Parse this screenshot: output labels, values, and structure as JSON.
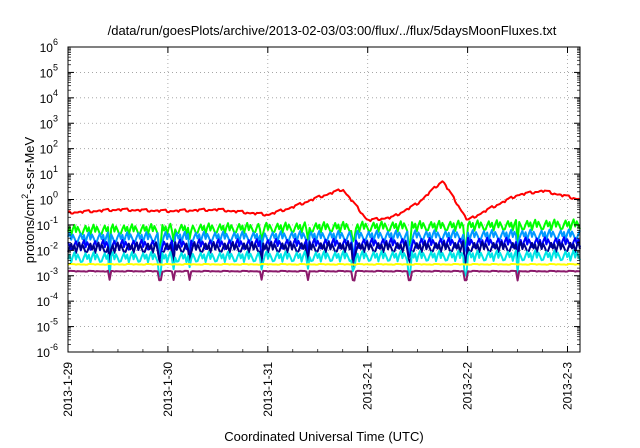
{
  "chart_data": {
    "type": "line",
    "title": "/data/run/goesPlots/archive/2013-02-03/03:00/flux/../flux/5daysMoonFluxes.txt",
    "xlabel": "Coordinated Universal Time (UTC)",
    "ylabel": "protons/cm2-s-sr-MeV",
    "ylabel_parts": {
      "base": "protons/cm",
      "sup": "2",
      "rest": "-s-sr-MeV"
    },
    "y_scale": "log",
    "ylim": [
      1e-06,
      1000000
    ],
    "y_ticks": [
      {
        "value": 1e-06,
        "base": "10",
        "exp": "-6"
      },
      {
        "value": 1e-05,
        "base": "10",
        "exp": "-5"
      },
      {
        "value": 0.0001,
        "base": "10",
        "exp": "-4"
      },
      {
        "value": 0.001,
        "base": "10",
        "exp": "-3"
      },
      {
        "value": 0.01,
        "base": "10",
        "exp": "-2"
      },
      {
        "value": 0.1,
        "base": "10",
        "exp": "-1"
      },
      {
        "value": 1,
        "base": "10",
        "exp": "0"
      },
      {
        "value": 10,
        "base": "10",
        "exp": "1"
      },
      {
        "value": 100,
        "base": "10",
        "exp": "2"
      },
      {
        "value": 1000,
        "base": "10",
        "exp": "3"
      },
      {
        "value": 10000,
        "base": "10",
        "exp": "4"
      },
      {
        "value": 100000,
        "base": "10",
        "exp": "5"
      },
      {
        "value": 1000000,
        "base": "10",
        "exp": "6"
      }
    ],
    "xlim": [
      "2013-01-29T00:00",
      "2013-02-03T03:00"
    ],
    "x_ticks": [
      "2013-1-29",
      "2013-1-30",
      "2013-1-31",
      "2013-2-1",
      "2013-2-2",
      "2013-2-3"
    ],
    "grid": true,
    "legend": "none",
    "series": [
      {
        "color": "#ff0000",
        "x": [
          "2013-01-29T00:00",
          "2013-01-29T12:00",
          "2013-01-30T00:00",
          "2013-01-30T12:00",
          "2013-01-31T00:00",
          "2013-01-31T06:00",
          "2013-01-31T12:00",
          "2013-01-31T18:00",
          "2013-02-01T00:00",
          "2013-02-01T06:00",
          "2013-02-01T12:00",
          "2013-02-01T18:00",
          "2013-02-02T00:00",
          "2013-02-02T06:00",
          "2013-02-02T12:00",
          "2013-02-02T18:00",
          "2013-02-03T03:00"
        ],
        "y": [
          0.3,
          0.4,
          0.35,
          0.4,
          0.25,
          0.5,
          1.2,
          2.5,
          0.15,
          0.2,
          0.7,
          5.5,
          0.15,
          0.5,
          1.5,
          2.2,
          1.0
        ]
      },
      {
        "color": "#00ff00",
        "x": [
          "2013-01-29T00:00",
          "2013-02-03T03:00"
        ],
        "y": [
          0.06,
          0.1
        ]
      },
      {
        "color": "#0099ff",
        "x": [
          "2013-01-29T00:00",
          "2013-02-03T03:00"
        ],
        "y": [
          0.03,
          0.04
        ]
      },
      {
        "color": "#0000ff",
        "x": [
          "2013-01-29T00:00",
          "2013-02-03T03:00"
        ],
        "y": [
          0.015,
          0.02
        ]
      },
      {
        "color": "#00008b",
        "x": [
          "2013-01-29T00:00",
          "2013-02-03T03:00"
        ],
        "y": [
          0.012,
          0.013
        ]
      },
      {
        "color": "#00e5e5",
        "x": [
          "2013-01-29T00:00",
          "2013-02-03T03:00"
        ],
        "y": [
          0.005,
          0.006
        ]
      },
      {
        "color": "#ffff00",
        "x": [
          "2013-01-29T00:00",
          "2013-02-03T03:00"
        ],
        "y": [
          0.0028,
          0.0028
        ]
      },
      {
        "color": "#8b1a6b",
        "x": [
          "2013-01-29T00:00",
          "2013-02-03T03:00"
        ],
        "y": [
          0.0015,
          0.0015
        ]
      }
    ]
  }
}
